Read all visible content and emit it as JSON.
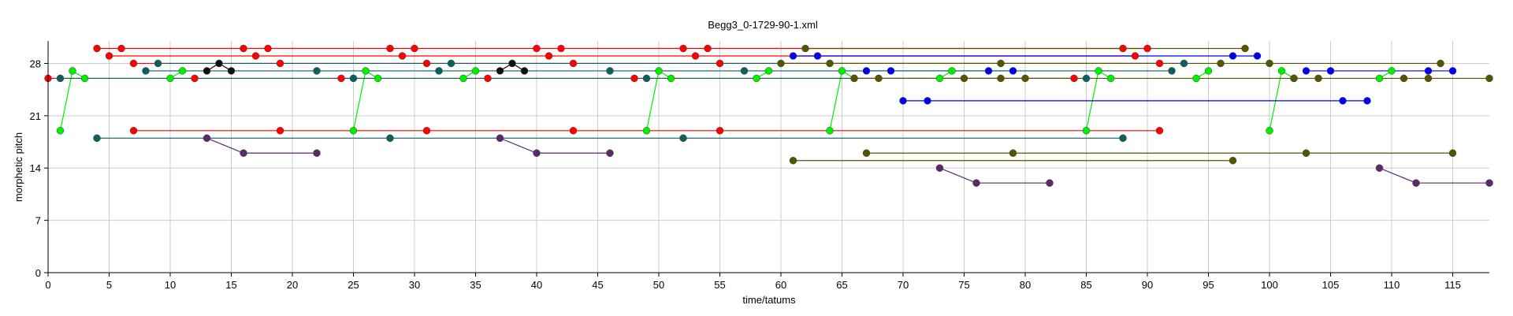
{
  "chart_data": {
    "type": "scatter",
    "title": "Begg3_0-1729-90-1.xml",
    "xlabel": "time/tatums",
    "ylabel": "morphetic pitch",
    "xlim": [
      0,
      118
    ],
    "ylim": [
      0,
      31
    ],
    "x_ticks": [
      0,
      5,
      10,
      15,
      20,
      25,
      30,
      35,
      40,
      45,
      50,
      55,
      60,
      65,
      70,
      75,
      80,
      85,
      90,
      95,
      100,
      105,
      110,
      115
    ],
    "y_ticks": [
      0,
      7,
      14,
      21,
      28
    ],
    "grid": true,
    "legend": "none",
    "series": [
      {
        "color": "#ff0000",
        "points": [
          [
            4,
            30
          ],
          [
            6,
            30
          ],
          [
            16,
            30
          ],
          [
            18,
            30
          ],
          [
            28,
            30
          ],
          [
            30,
            30
          ],
          [
            40,
            30
          ],
          [
            42,
            30
          ],
          [
            52,
            30
          ],
          [
            54,
            30
          ],
          [
            88,
            30
          ],
          [
            90,
            30
          ]
        ]
      },
      {
        "color": "#ff0000",
        "points": [
          [
            5,
            29
          ],
          [
            17,
            29
          ],
          [
            29,
            29
          ],
          [
            41,
            29
          ],
          [
            53,
            29
          ],
          [
            89,
            29
          ]
        ]
      },
      {
        "color": "#ff0000",
        "points": [
          [
            7,
            28
          ],
          [
            19,
            28
          ],
          [
            31,
            28
          ],
          [
            43,
            28
          ],
          [
            55,
            28
          ],
          [
            91,
            28
          ]
        ]
      },
      {
        "color": "#ff0000",
        "points": [
          [
            0,
            26
          ],
          [
            12,
            26
          ],
          [
            24,
            26
          ],
          [
            36,
            26
          ],
          [
            48,
            26
          ],
          [
            84,
            26
          ]
        ]
      },
      {
        "color": "#ff0000",
        "points": [
          [
            7,
            19
          ],
          [
            19,
            19
          ],
          [
            31,
            19
          ],
          [
            43,
            19
          ],
          [
            55,
            19
          ],
          [
            91,
            19
          ]
        ]
      },
      {
        "color": "#00ee00",
        "points": [
          [
            1,
            19
          ],
          [
            2,
            27
          ],
          [
            3,
            26
          ]
        ]
      },
      {
        "color": "#00ee00",
        "points": [
          [
            10,
            26
          ],
          [
            11,
            27
          ]
        ]
      },
      {
        "color": "#00ee00",
        "points": [
          [
            25,
            19
          ],
          [
            26,
            27
          ],
          [
            27,
            26
          ]
        ]
      },
      {
        "color": "#00ee00",
        "points": [
          [
            34,
            26
          ],
          [
            35,
            27
          ]
        ]
      },
      {
        "color": "#00ee00",
        "points": [
          [
            49,
            19
          ],
          [
            50,
            27
          ],
          [
            51,
            26
          ]
        ]
      },
      {
        "color": "#00ee00",
        "points": [
          [
            58,
            26
          ],
          [
            59,
            27
          ]
        ]
      },
      {
        "color": "#00ee00",
        "points": [
          [
            64,
            19
          ],
          [
            65,
            27
          ],
          [
            66,
            26
          ]
        ]
      },
      {
        "color": "#00ee00",
        "points": [
          [
            73,
            26
          ],
          [
            74,
            27
          ]
        ]
      },
      {
        "color": "#00ee00",
        "points": [
          [
            85,
            19
          ],
          [
            86,
            27
          ],
          [
            87,
            26
          ]
        ]
      },
      {
        "color": "#00ee00",
        "points": [
          [
            94,
            26
          ],
          [
            95,
            27
          ]
        ]
      },
      {
        "color": "#00ee00",
        "points": [
          [
            100,
            19
          ],
          [
            101,
            27
          ],
          [
            102,
            26
          ]
        ]
      },
      {
        "color": "#00ee00",
        "points": [
          [
            109,
            26
          ],
          [
            110,
            27
          ]
        ]
      },
      {
        "color": "#0000ee",
        "points": [
          [
            61,
            29
          ],
          [
            63,
            29
          ],
          [
            97,
            29
          ],
          [
            99,
            29
          ]
        ]
      },
      {
        "color": "#0000ee",
        "points": [
          [
            67,
            27
          ],
          [
            69,
            27
          ],
          [
            77,
            27
          ],
          [
            79,
            27
          ]
        ]
      },
      {
        "color": "#0000ee",
        "points": [
          [
            103,
            27
          ],
          [
            105,
            27
          ],
          [
            113,
            27
          ],
          [
            115,
            27
          ]
        ]
      },
      {
        "color": "#0000ee",
        "points": [
          [
            70,
            23
          ],
          [
            72,
            23
          ],
          [
            106,
            23
          ],
          [
            108,
            23
          ]
        ]
      },
      {
        "color": "#0d6060",
        "points": [
          [
            8,
            27
          ],
          [
            22,
            27
          ],
          [
            46,
            27
          ],
          [
            57,
            27
          ],
          [
            92,
            27
          ]
        ]
      },
      {
        "color": "#0d6060",
        "points": [
          [
            1,
            26
          ],
          [
            25,
            26
          ],
          [
            49,
            26
          ],
          [
            85,
            26
          ]
        ]
      },
      {
        "color": "#0d6060",
        "points": [
          [
            4,
            18
          ],
          [
            28,
            18
          ],
          [
            52,
            18
          ],
          [
            88,
            18
          ]
        ]
      },
      {
        "color": "#0d6060",
        "points": [
          [
            9,
            28
          ],
          [
            33,
            28
          ],
          [
            93,
            28
          ]
        ]
      },
      {
        "color": "#0d6060",
        "points": [
          [
            32,
            27
          ]
        ]
      },
      {
        "color": "#111111",
        "points": [
          [
            13,
            27
          ],
          [
            14,
            28
          ],
          [
            15,
            27
          ]
        ]
      },
      {
        "color": "#111111",
        "points": [
          [
            37,
            27
          ],
          [
            38,
            28
          ],
          [
            39,
            27
          ]
        ]
      },
      {
        "color": "#5a2a6a",
        "points": [
          [
            13,
            18
          ],
          [
            16,
            16
          ],
          [
            22,
            16
          ]
        ]
      },
      {
        "color": "#5a2a6a",
        "points": [
          [
            37,
            18
          ],
          [
            40,
            16
          ],
          [
            46,
            16
          ]
        ]
      },
      {
        "color": "#5a2a6a",
        "points": [
          [
            73,
            14
          ],
          [
            76,
            12
          ],
          [
            82,
            12
          ]
        ]
      },
      {
        "color": "#5a2a6a",
        "points": [
          [
            109,
            14
          ],
          [
            112,
            12
          ],
          [
            118,
            12
          ]
        ]
      },
      {
        "color": "#555500",
        "points": [
          [
            60,
            28
          ],
          [
            64,
            28
          ],
          [
            78,
            28
          ],
          [
            96,
            28
          ],
          [
            100,
            28
          ],
          [
            114,
            28
          ]
        ]
      },
      {
        "color": "#555500",
        "points": [
          [
            62,
            30
          ],
          [
            98,
            30
          ]
        ]
      },
      {
        "color": "#555500",
        "points": [
          [
            66,
            26
          ],
          [
            68,
            26
          ],
          [
            75,
            26
          ],
          [
            78,
            26
          ],
          [
            80,
            26
          ],
          [
            102,
            26
          ],
          [
            104,
            26
          ],
          [
            111,
            26
          ],
          [
            113,
            26
          ],
          [
            118,
            26
          ]
        ]
      },
      {
        "color": "#555500",
        "points": [
          [
            61,
            15
          ],
          [
            97,
            15
          ]
        ]
      },
      {
        "color": "#555500",
        "points": [
          [
            67,
            16
          ],
          [
            79,
            16
          ],
          [
            103,
            16
          ],
          [
            115,
            16
          ]
        ]
      }
    ]
  }
}
